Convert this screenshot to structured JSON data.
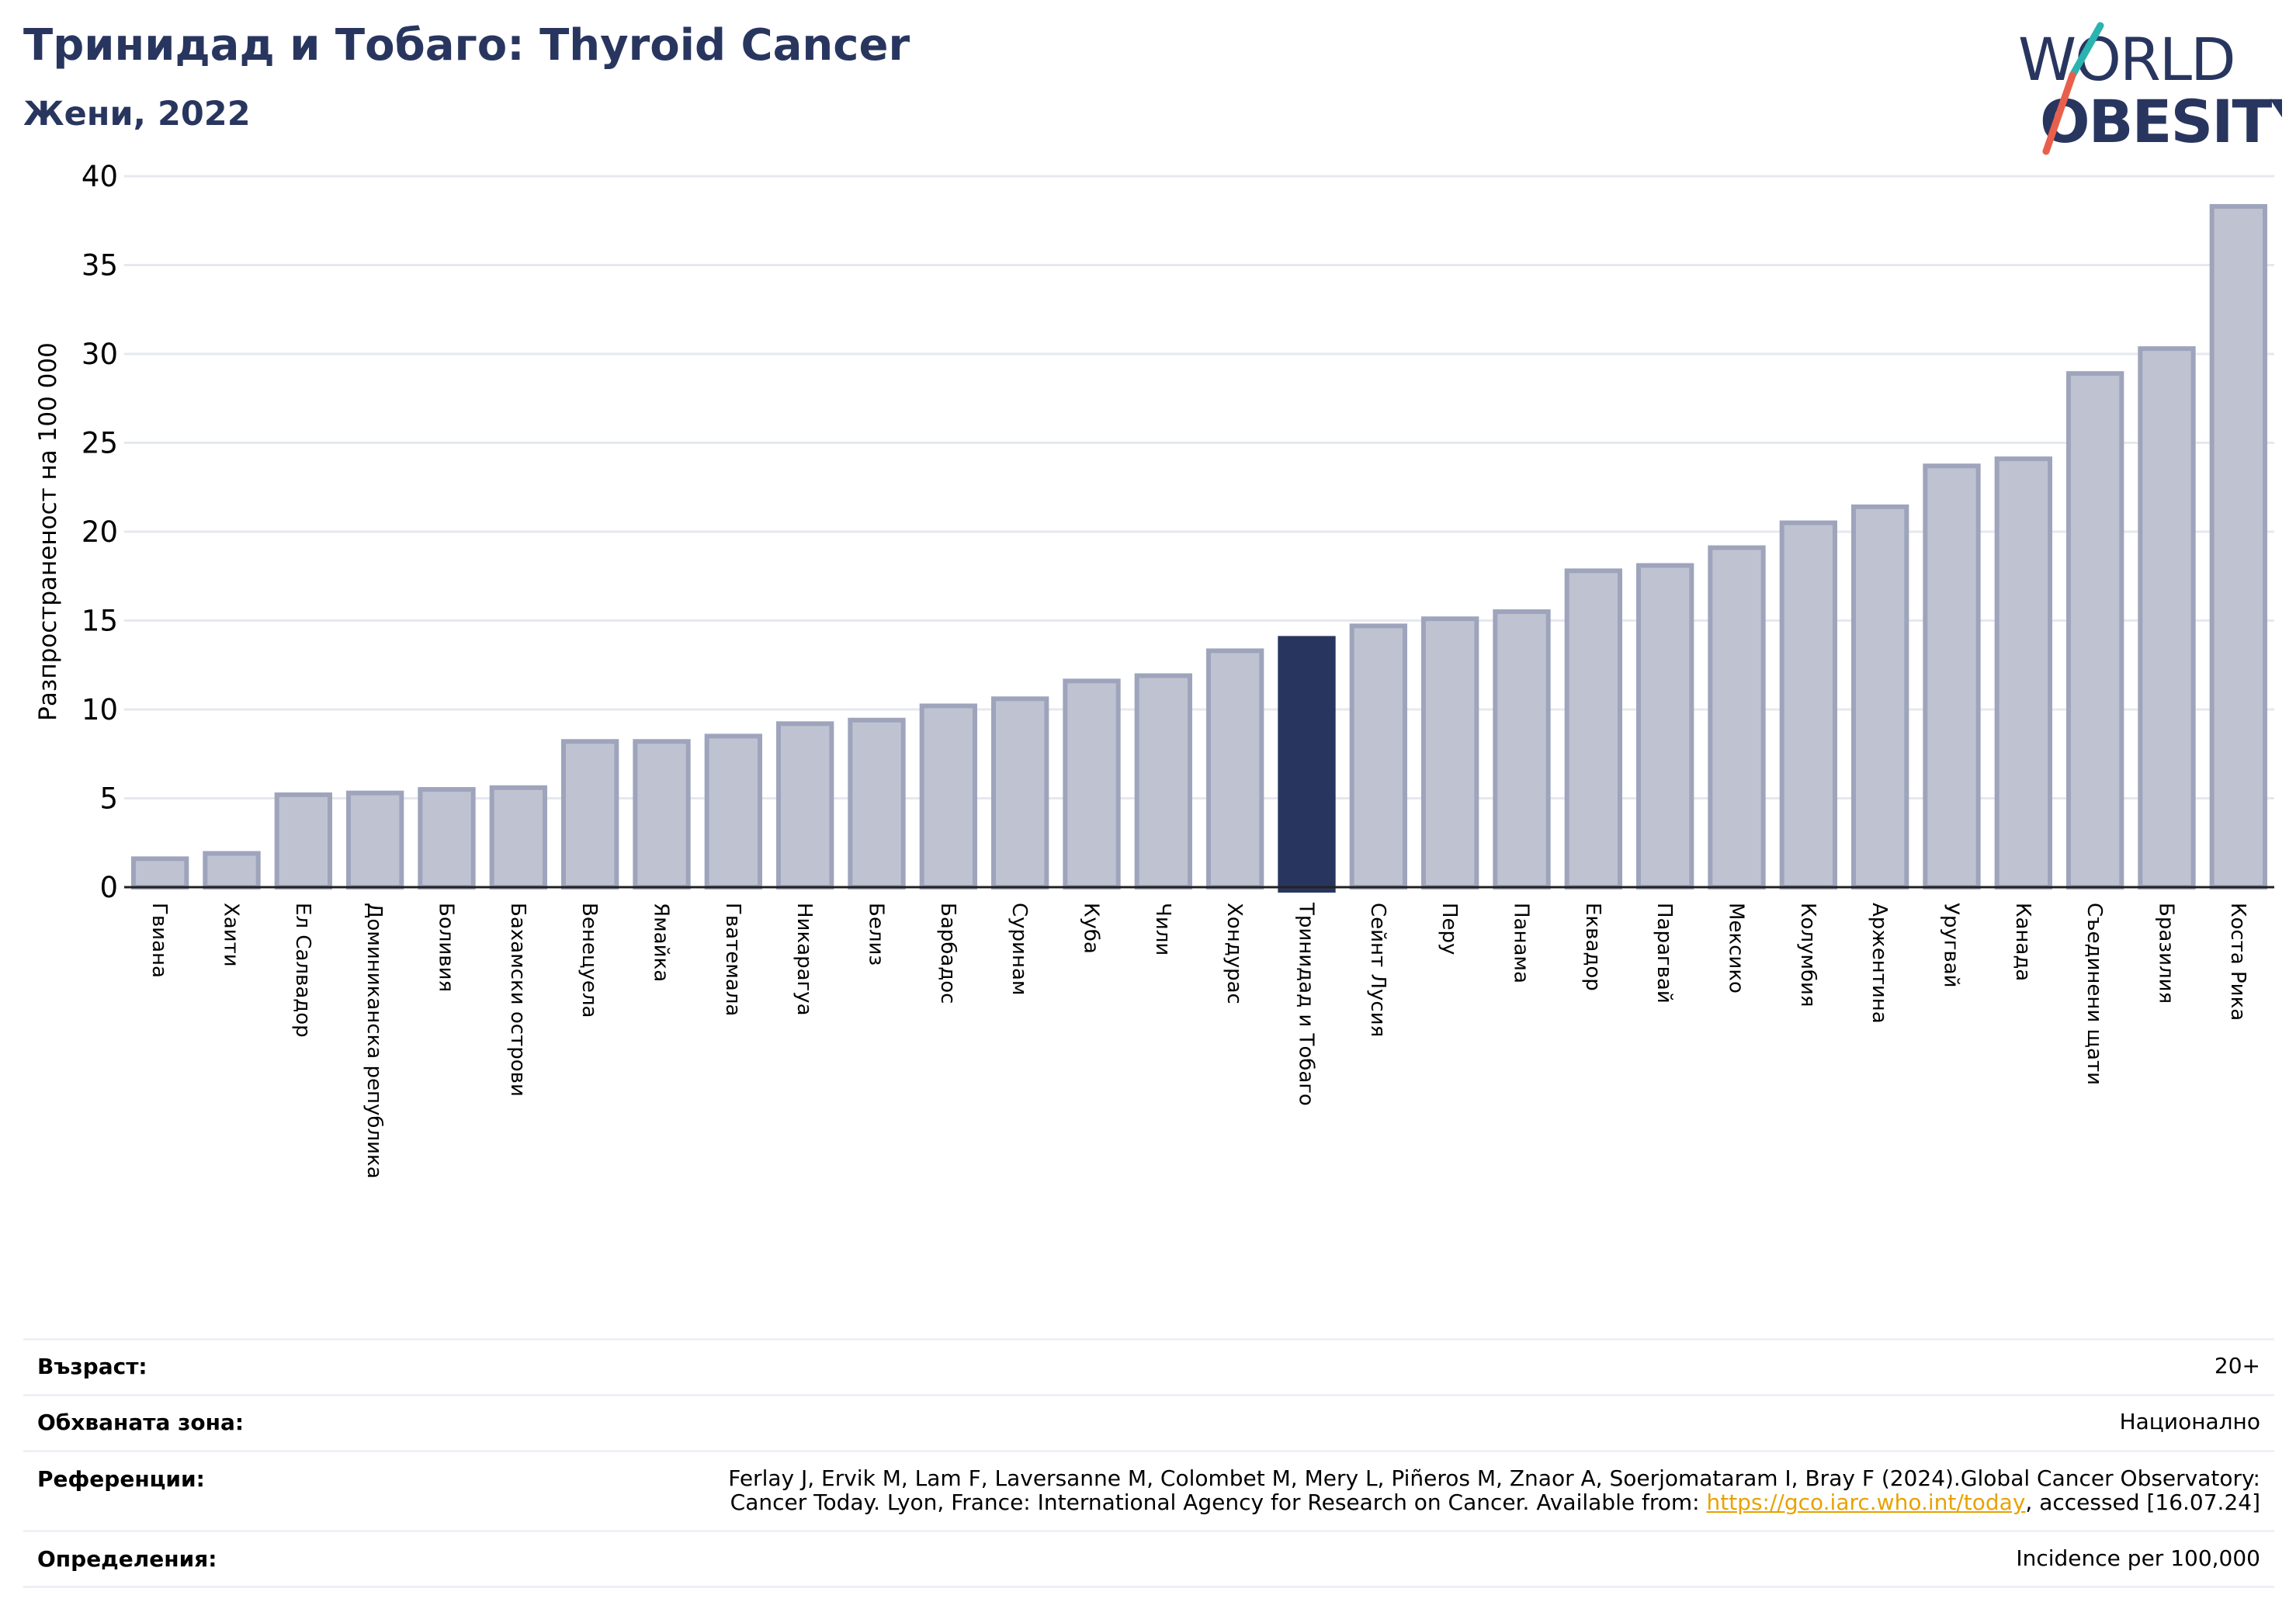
{
  "header": {
    "title": "Тринидад и Тобаго: Thyroid Cancer",
    "subtitle": "Жени, 2022"
  },
  "logo": {
    "line1": "WORLD",
    "line2": "OBESITY",
    "colors": {
      "text": "#28365f",
      "slash_top": "#2bb3b0",
      "slash_bottom": "#e8604c"
    }
  },
  "chart_data": {
    "type": "bar",
    "title": "Тринидад и Тобаго: Thyroid Cancer",
    "subtitle": "Жени, 2022",
    "ylabel": "Разпространеност  на 100 000",
    "xlabel": "",
    "ylim": [
      0,
      40
    ],
    "yticks": [
      0,
      5,
      10,
      15,
      20,
      25,
      30,
      35,
      40
    ],
    "grid": true,
    "highlight": "Тринидад и Тобаго",
    "colors": {
      "bar": "#bfc3d1",
      "bar_edge": "#9ea4bb",
      "highlight": "#28365f",
      "grid": "#e6e8ef"
    },
    "categories": [
      "Гвиана",
      "Хаити",
      "Ел Салвадор",
      "Доминиканска република",
      "Боливия",
      "Бахамски острови",
      "Венецуела",
      "Ямайка",
      "Гватемала",
      "Никарагуа",
      "Белиз",
      "Барбадос",
      "Суринам",
      "Куба",
      "Чили",
      "Хондурас",
      "Тринидад и Тобаго",
      "Сейнт Лусия",
      "Перу",
      "Панама",
      "Еквадор",
      "Парагвай",
      "Мексико",
      "Колумбия",
      "Аржентина",
      "Уругвай",
      "Канада",
      "Съединени щати",
      "Бразилия",
      "Коста Рика"
    ],
    "values": [
      1.6,
      1.9,
      5.2,
      5.3,
      5.5,
      5.6,
      8.2,
      8.2,
      8.5,
      9.2,
      9.4,
      10.2,
      10.6,
      11.6,
      11.9,
      13.3,
      14.0,
      14.7,
      15.1,
      15.5,
      17.8,
      18.1,
      19.1,
      20.5,
      21.4,
      23.7,
      24.1,
      28.9,
      30.3,
      38.3
    ]
  },
  "footer": {
    "rows": [
      {
        "label": "Възраст:",
        "value": "20+"
      },
      {
        "label": "Обхваната зона:",
        "value": "Национално"
      },
      {
        "label": "Референции:",
        "value_line1": "Ferlay J, Ervik M, Lam F, Laversanne M, Colombet M, Mery L, Piñeros M, Znaor A, Soerjomataram I, Bray F (2024).Global Cancer Observatory:",
        "value_line2_pre": "Cancer Today. Lyon, France: International Agency for Research on Cancer. Available from: ",
        "value_link": "https://gco.iarc.who.int/today",
        "value_line2_post": ", accessed [16.07.24]"
      },
      {
        "label": "Определения:",
        "value": "Incidence per 100,000"
      }
    ]
  }
}
